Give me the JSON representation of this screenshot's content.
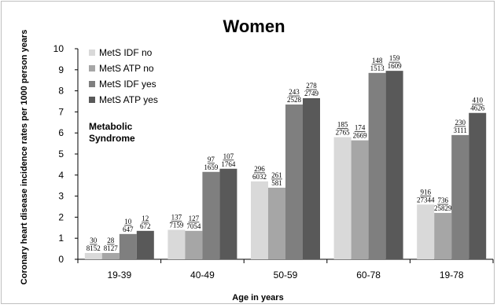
{
  "chart_data": {
    "type": "bar",
    "title": "Women",
    "xlabel": "Age in years",
    "ylabel": "Coronary heart disease incidence rates per 1000 person years",
    "ylim": [
      0,
      10
    ],
    "yticks": [
      "0",
      "1",
      "2",
      "3",
      "4",
      "5",
      "6",
      "7",
      "8",
      "9",
      "10"
    ],
    "grid": false,
    "legend_position": "top-left",
    "annotation": [
      "Metabolic",
      "Syndrome"
    ],
    "categories": [
      "19-39",
      "40-49",
      "50-59",
      "60-78",
      "19-78"
    ],
    "series": [
      {
        "name": "MetS IDF no",
        "color": "#d9d9d9",
        "values": [
          0.3,
          1.4,
          3.7,
          5.8,
          2.6
        ],
        "labels": [
          [
            "30",
            "8152"
          ],
          [
            "137",
            "7159"
          ],
          [
            "296",
            "6032"
          ],
          [
            "185",
            "2765"
          ],
          [
            "916",
            "27344"
          ]
        ]
      },
      {
        "name": "MetS ATP no",
        "color": "#a6a6a6",
        "values": [
          0.3,
          1.35,
          3.4,
          5.65,
          2.2
        ],
        "labels": [
          [
            "28",
            "8127"
          ],
          [
            "127",
            "7054"
          ],
          [
            "261",
            "581"
          ],
          [
            "174",
            "2669"
          ],
          [
            "736",
            "25829"
          ]
        ]
      },
      {
        "name": "MetS IDF yes",
        "color": "#7f7f7f",
        "values": [
          1.2,
          4.15,
          7.35,
          8.85,
          5.9
        ],
        "labels": [
          [
            "10",
            "647"
          ],
          [
            "97",
            "1659"
          ],
          [
            "243",
            "2528"
          ],
          [
            "148",
            "1513"
          ],
          [
            "230",
            "3111"
          ]
        ]
      },
      {
        "name": "MetS ATP yes",
        "color": "#595959",
        "values": [
          1.35,
          4.3,
          7.65,
          8.95,
          6.95
        ],
        "labels": [
          [
            "12",
            "672"
          ],
          [
            "107",
            "1764"
          ],
          [
            "278",
            "2749"
          ],
          [
            "159",
            "1609"
          ],
          [
            "410",
            "4626"
          ]
        ]
      }
    ]
  }
}
